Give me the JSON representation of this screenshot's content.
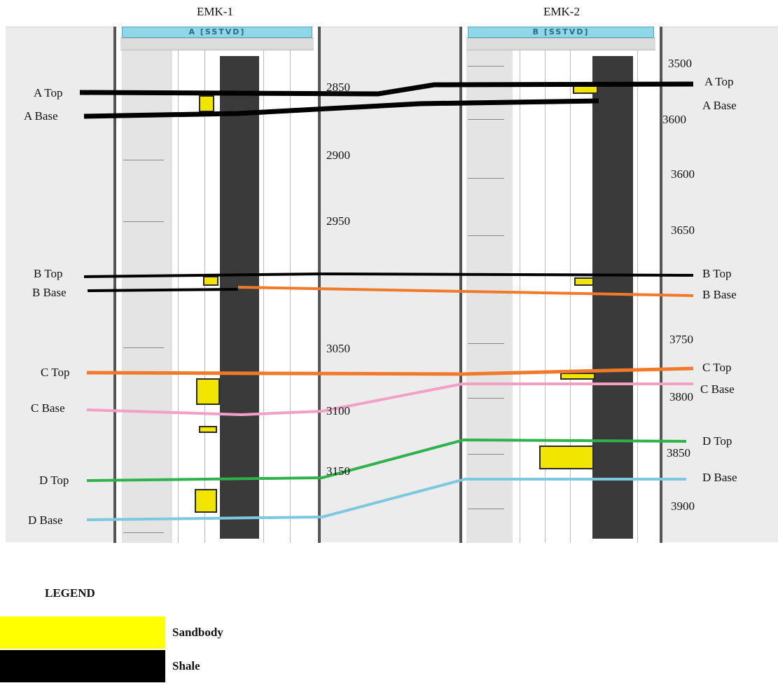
{
  "wells": [
    {
      "name": "EMK-1",
      "header": "A [SSTVD]"
    },
    {
      "name": "EMK-2",
      "header": "B [SSTVD]"
    }
  ],
  "well1_depths": [
    "2850",
    "2900",
    "2950",
    "3050",
    "3100",
    "3150"
  ],
  "well2_depths": [
    "3500",
    "3600",
    "3600",
    "3650",
    "3750",
    "3800",
    "3850",
    "3900"
  ],
  "horizons": [
    {
      "left_label": "A Top",
      "right_label": "A Top",
      "color": "#000000"
    },
    {
      "left_label": "A Base",
      "right_label": "A Base",
      "color": "#000000"
    },
    {
      "left_label": "B Top",
      "right_label": "B Top",
      "color": "#000000"
    },
    {
      "left_label": "B Base",
      "right_label": "B Base",
      "color": "#f07a2a"
    },
    {
      "left_label": "C Top",
      "right_label": "C Top",
      "color": "#f07a2a"
    },
    {
      "left_label": "C Base",
      "right_label": "C Base",
      "color": "#f2a0c8"
    },
    {
      "left_label": "D Top",
      "right_label": "D Top",
      "color": "#2db34a"
    },
    {
      "left_label": "D Base",
      "right_label": "D Base",
      "color": "#7cc8e0"
    }
  ],
  "legend": {
    "title": "LEGEND",
    "items": [
      {
        "label": "Sandbody",
        "color": "#ffff00"
      },
      {
        "label": "Shale",
        "color": "#000000"
      }
    ]
  }
}
